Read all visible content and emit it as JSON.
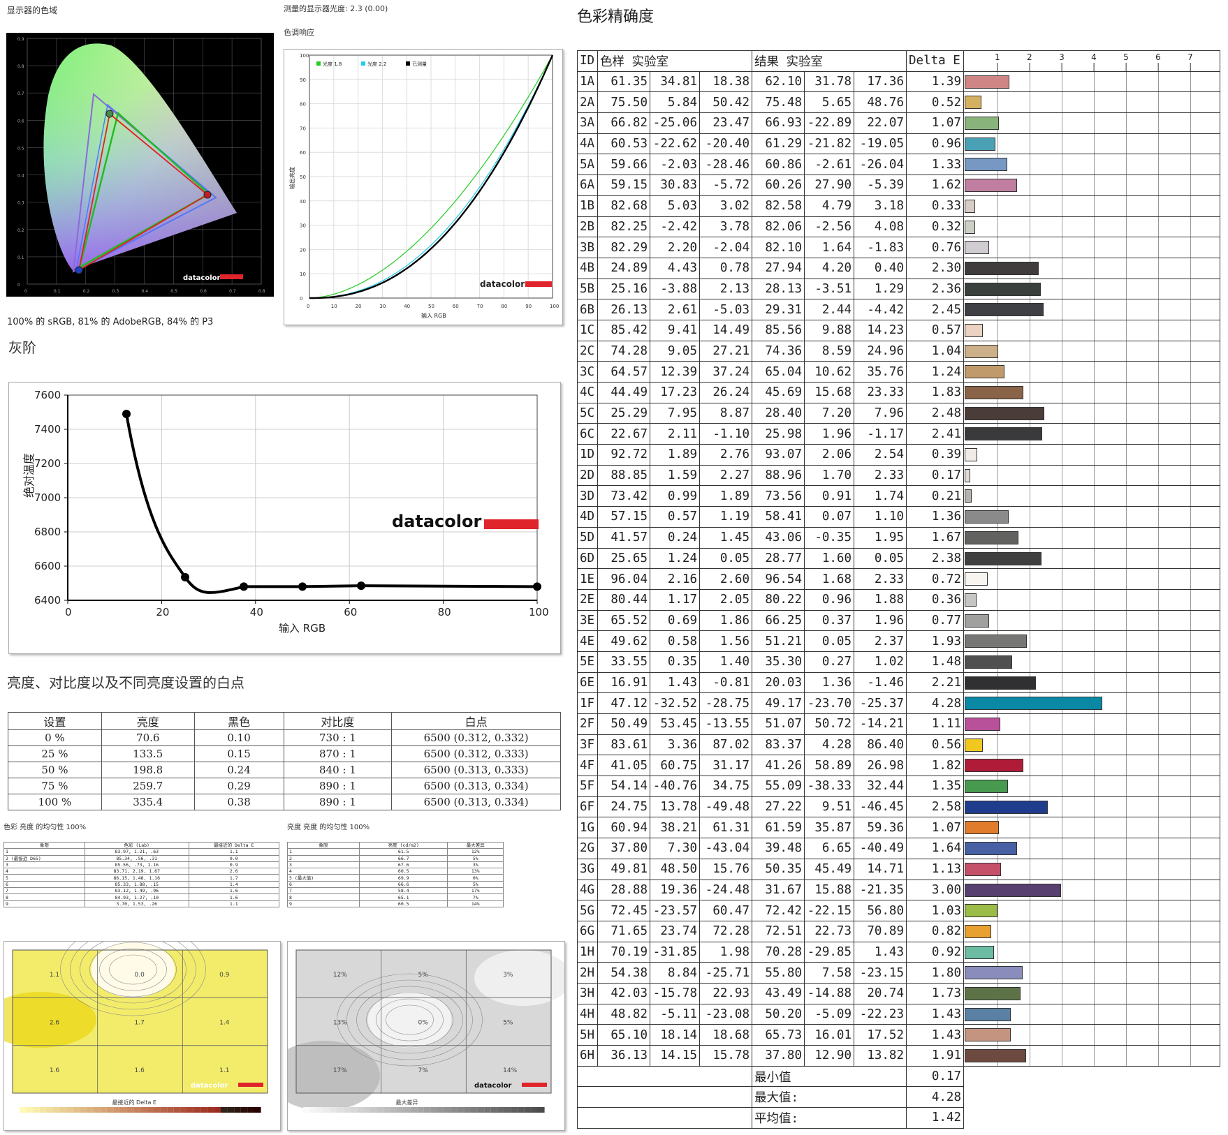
{
  "gamut": {
    "title": "显示器的色域",
    "summary": "100% 的 sRGB, 81% 的 AdobeRGB, 84% 的 P3",
    "logo": "datacolor",
    "x_ticks": [
      "0",
      "0.1",
      "0.2",
      "0.3",
      "0.4",
      "0.5",
      "0.6",
      "0.7",
      "0.8"
    ],
    "y_ticks": [
      "0.9",
      "0.8",
      "0.7",
      "0.6",
      "0.5",
      "0.4",
      "0.3",
      "0.2",
      "0.1",
      "0"
    ]
  },
  "tone": {
    "gamma_text": "测量的显示器光度: 2.3 (0.00)",
    "title": "色调响应",
    "legend": [
      "光度 1.8",
      "光度 2.2",
      "已测量"
    ],
    "legend_colors": [
      "#22cc22",
      "#22ccee",
      "#000000"
    ],
    "ylabel": "输出亮度",
    "xlabel": "输入 RGB",
    "logo": "datacolor",
    "ticks": [
      "0",
      "10",
      "20",
      "30",
      "40",
      "50",
      "60",
      "70",
      "80",
      "90",
      "100"
    ]
  },
  "grayscale": {
    "title": "灰阶",
    "ylabel": "绝对温度",
    "xlabel": "输入 RGB",
    "logo": "datacolor",
    "x_ticks": [
      "0",
      "20",
      "40",
      "60",
      "80",
      "100"
    ],
    "y_ticks": [
      "7600",
      "7400",
      "7200",
      "7000",
      "6800",
      "6600",
      "6400"
    ]
  },
  "chart_data": [
    {
      "type": "line",
      "title": "灰阶",
      "xlabel": "输入 RGB",
      "ylabel": "绝对温度",
      "xlim": [
        0,
        100
      ],
      "ylim": [
        6400,
        7600
      ],
      "x": [
        12.5,
        25,
        37.5,
        50,
        62.5,
        100
      ],
      "series": [
        {
          "values": [
            7490,
            6535,
            6480,
            6480,
            6485,
            6480
          ]
        }
      ]
    },
    {
      "type": "line",
      "title": "色调响应",
      "xlabel": "输入 RGB",
      "ylabel": "输出亮度",
      "xlim": [
        0,
        100
      ],
      "ylim": [
        0,
        100
      ],
      "series": [
        {
          "name": "光度 1.8",
          "gamma": 1.8
        },
        {
          "name": "光度 2.2",
          "gamma": 2.2
        },
        {
          "name": "已测量",
          "gamma": 2.3
        }
      ]
    }
  ],
  "brightness": {
    "title": "亮度、对比度以及不同亮度设置的白点",
    "headers": [
      "设置",
      "亮度",
      "黑色",
      "对比度",
      "白点"
    ],
    "rows": [
      [
        "0 %",
        "70.6",
        "0.10",
        "730 : 1",
        "6500 (0.312, 0.332)"
      ],
      [
        "25 %",
        "133.5",
        "0.15",
        "870 : 1",
        "6500 (0.312, 0.333)"
      ],
      [
        "50 %",
        "198.8",
        "0.24",
        "840 : 1",
        "6500 (0.313, 0.333)"
      ],
      [
        "75 %",
        "259.7",
        "0.29",
        "890 : 1",
        "6500 (0.313, 0.334)"
      ],
      [
        "100 %",
        "335.4",
        "0.38",
        "890 : 1",
        "6500 (0.313, 0.334)"
      ]
    ]
  },
  "uniformity_color": {
    "title": "色彩 亮度 的均匀性 100%",
    "headers": [
      "象限",
      "色彩 (Lab)",
      "最接近的 Delta E"
    ],
    "rows": [
      [
        "1",
        "83.97, 1.21, .63",
        "1.1"
      ],
      [
        "2 (最接近 D65)",
        "85.34, .56, .31",
        "0.0"
      ],
      [
        "3",
        "85.56, .73, 1.16",
        "0.9"
      ],
      [
        "4",
        "83.71, 2.19, 1.67",
        "2.6"
      ],
      [
        "5",
        "86.15, 1.48, 1.16",
        "1.7"
      ],
      [
        "6",
        "85.33, 1.88, .15",
        "1.4"
      ],
      [
        "7",
        "83.12, 1.49, .96",
        "1.6"
      ],
      [
        "8",
        "84.93, 1.27, .10",
        "1.6"
      ],
      [
        "9",
        "3.70, 1.53, .26",
        "1.1"
      ]
    ],
    "grid_values": [
      "1.1",
      "0.0",
      "0.9",
      "2.6",
      "1.7",
      "1.4",
      "1.6",
      "1.6",
      "1.1"
    ],
    "scale_title": "最接近的 Delta E",
    "logo": "datacolor"
  },
  "uniformity_lum": {
    "title": "亮度 亮度 的均匀性 100%",
    "headers": [
      "象限",
      "亮度 (cd/m2)",
      "最大差异"
    ],
    "rows": [
      [
        "1",
        "61.5",
        "12%"
      ],
      [
        "2",
        "66.7",
        "5%"
      ],
      [
        "3",
        "67.6",
        "3%"
      ],
      [
        "4",
        "60.5",
        "13%"
      ],
      [
        "5 (最大值)",
        "69.9",
        "0%"
      ],
      [
        "6",
        "66.6",
        "5%"
      ],
      [
        "7",
        "58.4",
        "17%"
      ],
      [
        "8",
        "65.1",
        "7%"
      ],
      [
        "9",
        "60.5",
        "14%"
      ]
    ],
    "grid_values": [
      "12%",
      "5%",
      "3%",
      "13%",
      "0%",
      "5%",
      "17%",
      "7%",
      "14%"
    ],
    "scale_title": "最大差异",
    "logo": "datacolor"
  },
  "accuracy": {
    "title": "色彩精确度",
    "headers": {
      "id": "ID",
      "sample": "色样 实验室",
      "result": "结果 实验室",
      "de": "Delta E"
    },
    "axis_ticks": [
      "1",
      "2",
      "3",
      "4",
      "5",
      "6",
      "7"
    ],
    "rows": [
      {
        "id": "1A",
        "s": [
          "61.35",
          "34.81",
          "18.38"
        ],
        "r": [
          "62.10",
          "31.78",
          "17.36"
        ],
        "de": 1.39,
        "c": "#d08585"
      },
      {
        "id": "2A",
        "s": [
          "75.50",
          "5.84",
          "50.42"
        ],
        "r": [
          "75.48",
          "5.65",
          "48.76"
        ],
        "de": 0.52,
        "c": "#d4b060"
      },
      {
        "id": "3A",
        "s": [
          "66.82",
          "-25.06",
          "23.47"
        ],
        "r": [
          "66.93",
          "-22.89",
          "22.07"
        ],
        "de": 1.07,
        "c": "#88b47c"
      },
      {
        "id": "4A",
        "s": [
          "60.53",
          "-22.62",
          "-20.40"
        ],
        "r": [
          "61.29",
          "-21.82",
          "-19.05"
        ],
        "de": 0.96,
        "c": "#4aa0b4"
      },
      {
        "id": "5A",
        "s": [
          "59.66",
          "-2.03",
          "-28.46"
        ],
        "r": [
          "60.86",
          "-2.61",
          "-26.04"
        ],
        "de": 1.33,
        "c": "#7898c4"
      },
      {
        "id": "6A",
        "s": [
          "59.15",
          "30.83",
          "-5.72"
        ],
        "r": [
          "60.26",
          "27.90",
          "-5.39"
        ],
        "de": 1.62,
        "c": "#c07ea0"
      },
      {
        "id": "1B",
        "s": [
          "82.68",
          "5.03",
          "3.02"
        ],
        "r": [
          "82.58",
          "4.79",
          "3.18"
        ],
        "de": 0.33,
        "c": "#d8ccc6"
      },
      {
        "id": "2B",
        "s": [
          "82.25",
          "-2.42",
          "3.78"
        ],
        "r": [
          "82.06",
          "-2.56",
          "4.08"
        ],
        "de": 0.32,
        "c": "#cccfc4"
      },
      {
        "id": "3B",
        "s": [
          "82.29",
          "2.20",
          "-2.04"
        ],
        "r": [
          "82.10",
          "1.64",
          "-1.83"
        ],
        "de": 0.76,
        "c": "#d0ccd2"
      },
      {
        "id": "4B",
        "s": [
          "24.89",
          "4.43",
          "0.78"
        ],
        "r": [
          "27.94",
          "4.20",
          "0.40"
        ],
        "de": 2.3,
        "c": "#403c3e"
      },
      {
        "id": "5B",
        "s": [
          "25.16",
          "-3.88",
          "2.13"
        ],
        "r": [
          "28.13",
          "-3.51",
          "1.29"
        ],
        "de": 2.36,
        "c": "#3a403c"
      },
      {
        "id": "6B",
        "s": [
          "26.13",
          "2.61",
          "-5.03"
        ],
        "r": [
          "29.31",
          "2.44",
          "-4.42"
        ],
        "de": 2.45,
        "c": "#3e4046"
      },
      {
        "id": "1C",
        "s": [
          "85.42",
          "9.41",
          "14.49"
        ],
        "r": [
          "85.56",
          "9.88",
          "14.23"
        ],
        "de": 0.57,
        "c": "#ecd2c2"
      },
      {
        "id": "2C",
        "s": [
          "74.28",
          "9.05",
          "27.21"
        ],
        "r": [
          "74.36",
          "8.59",
          "24.96"
        ],
        "de": 1.04,
        "c": "#ccb08a"
      },
      {
        "id": "3C",
        "s": [
          "64.57",
          "12.39",
          "37.24"
        ],
        "r": [
          "65.04",
          "10.62",
          "35.76"
        ],
        "de": 1.24,
        "c": "#c09a6a"
      },
      {
        "id": "4C",
        "s": [
          "44.49",
          "17.23",
          "26.24"
        ],
        "r": [
          "45.69",
          "15.68",
          "23.33"
        ],
        "de": 1.83,
        "c": "#8a6448"
      },
      {
        "id": "5C",
        "s": [
          "25.29",
          "7.95",
          "8.87"
        ],
        "r": [
          "28.40",
          "7.20",
          "7.96"
        ],
        "de": 2.48,
        "c": "#4a3c38"
      },
      {
        "id": "6C",
        "s": [
          "22.67",
          "2.11",
          "-1.10"
        ],
        "r": [
          "25.98",
          "1.96",
          "-1.17"
        ],
        "de": 2.41,
        "c": "#3a3a3c"
      },
      {
        "id": "1D",
        "s": [
          "92.72",
          "1.89",
          "2.76"
        ],
        "r": [
          "93.07",
          "2.06",
          "2.54"
        ],
        "de": 0.39,
        "c": "#f0ebe6"
      },
      {
        "id": "2D",
        "s": [
          "88.85",
          "1.59",
          "2.27"
        ],
        "r": [
          "88.96",
          "1.70",
          "2.33"
        ],
        "de": 0.17,
        "c": "#e2dcd8"
      },
      {
        "id": "3D",
        "s": [
          "73.42",
          "0.99",
          "1.89"
        ],
        "r": [
          "73.56",
          "0.91",
          "1.74"
        ],
        "de": 0.21,
        "c": "#b6b2b0"
      },
      {
        "id": "4D",
        "s": [
          "57.15",
          "0.57",
          "1.19"
        ],
        "r": [
          "58.41",
          "0.07",
          "1.10"
        ],
        "de": 1.36,
        "c": "#8a8a8a"
      },
      {
        "id": "5D",
        "s": [
          "41.57",
          "0.24",
          "1.45"
        ],
        "r": [
          "43.06",
          "-0.35",
          "1.95"
        ],
        "de": 1.67,
        "c": "#626260"
      },
      {
        "id": "6D",
        "s": [
          "25.65",
          "1.24",
          "0.05"
        ],
        "r": [
          "28.77",
          "1.60",
          "0.05"
        ],
        "de": 2.38,
        "c": "#404040"
      },
      {
        "id": "1E",
        "s": [
          "96.04",
          "2.16",
          "2.60"
        ],
        "r": [
          "96.54",
          "1.68",
          "2.33"
        ],
        "de": 0.72,
        "c": "#f8f4f0"
      },
      {
        "id": "2E",
        "s": [
          "80.44",
          "1.17",
          "2.05"
        ],
        "r": [
          "80.22",
          "0.96",
          "1.88"
        ],
        "de": 0.36,
        "c": "#c8c6c4"
      },
      {
        "id": "3E",
        "s": [
          "65.52",
          "0.69",
          "1.86"
        ],
        "r": [
          "66.25",
          "0.37",
          "1.96"
        ],
        "de": 0.77,
        "c": "#a0a09e"
      },
      {
        "id": "4E",
        "s": [
          "49.62",
          "0.58",
          "1.56"
        ],
        "r": [
          "51.21",
          "0.05",
          "2.37"
        ],
        "de": 1.93,
        "c": "#767674"
      },
      {
        "id": "5E",
        "s": [
          "33.55",
          "0.35",
          "1.40"
        ],
        "r": [
          "35.30",
          "0.27",
          "1.02"
        ],
        "de": 1.48,
        "c": "#505050"
      },
      {
        "id": "6E",
        "s": [
          "16.91",
          "1.43",
          "-0.81"
        ],
        "r": [
          "20.03",
          "1.36",
          "-1.46"
        ],
        "de": 2.21,
        "c": "#303032"
      },
      {
        "id": "1F",
        "s": [
          "47.12",
          "-32.52",
          "-28.75"
        ],
        "r": [
          "49.17",
          "-23.70",
          "-25.37"
        ],
        "de": 4.28,
        "c": "#0a88a4"
      },
      {
        "id": "2F",
        "s": [
          "50.49",
          "53.45",
          "-13.55"
        ],
        "r": [
          "51.07",
          "50.72",
          "-14.21"
        ],
        "de": 1.11,
        "c": "#b8509a"
      },
      {
        "id": "3F",
        "s": [
          "83.61",
          "3.36",
          "87.02"
        ],
        "r": [
          "83.37",
          "4.28",
          "86.40"
        ],
        "de": 0.56,
        "c": "#f0c820"
      },
      {
        "id": "4F",
        "s": [
          "41.05",
          "60.75",
          "31.17"
        ],
        "r": [
          "41.26",
          "58.89",
          "26.98"
        ],
        "de": 1.82,
        "c": "#b01c38"
      },
      {
        "id": "5F",
        "s": [
          "54.14",
          "-40.76",
          "34.75"
        ],
        "r": [
          "55.09",
          "-38.33",
          "32.44"
        ],
        "de": 1.35,
        "c": "#489a50"
      },
      {
        "id": "6F",
        "s": [
          "24.75",
          "13.78",
          "-49.48"
        ],
        "r": [
          "27.22",
          "9.51",
          "-46.45"
        ],
        "de": 2.58,
        "c": "#203c8c"
      },
      {
        "id": "1G",
        "s": [
          "60.94",
          "38.21",
          "61.31"
        ],
        "r": [
          "61.59",
          "35.87",
          "59.36"
        ],
        "de": 1.07,
        "c": "#e07c2c"
      },
      {
        "id": "2G",
        "s": [
          "37.80",
          "7.30",
          "-43.04"
        ],
        "r": [
          "39.48",
          "6.65",
          "-40.49"
        ],
        "de": 1.64,
        "c": "#4860a4"
      },
      {
        "id": "3G",
        "s": [
          "49.81",
          "48.50",
          "15.76"
        ],
        "r": [
          "50.35",
          "45.49",
          "14.71"
        ],
        "de": 1.13,
        "c": "#c4506a"
      },
      {
        "id": "4G",
        "s": [
          "28.88",
          "19.36",
          "-24.48"
        ],
        "r": [
          "31.67",
          "15.88",
          "-21.35"
        ],
        "de": 3.0,
        "c": "#584070"
      },
      {
        "id": "5G",
        "s": [
          "72.45",
          "-23.57",
          "60.47"
        ],
        "r": [
          "72.42",
          "-22.15",
          "56.80"
        ],
        "de": 1.03,
        "c": "#9cbc48"
      },
      {
        "id": "6G",
        "s": [
          "71.65",
          "23.74",
          "72.28"
        ],
        "r": [
          "72.51",
          "22.73",
          "70.89"
        ],
        "de": 0.82,
        "c": "#e8a030"
      },
      {
        "id": "1H",
        "s": [
          "70.19",
          "-31.85",
          "1.98"
        ],
        "r": [
          "70.28",
          "-29.85",
          "1.43"
        ],
        "de": 0.92,
        "c": "#6cbca4"
      },
      {
        "id": "2H",
        "s": [
          "54.38",
          "8.84",
          "-25.71"
        ],
        "r": [
          "55.80",
          "7.58",
          "-23.15"
        ],
        "de": 1.8,
        "c": "#8a8cbc"
      },
      {
        "id": "3H",
        "s": [
          "42.03",
          "-15.78",
          "22.93"
        ],
        "r": [
          "43.49",
          "-14.88",
          "20.74"
        ],
        "de": 1.73,
        "c": "#5e7248"
      },
      {
        "id": "4H",
        "s": [
          "48.82",
          "-5.11",
          "-23.08"
        ],
        "r": [
          "50.20",
          "-5.09",
          "-22.23"
        ],
        "de": 1.43,
        "c": "#5a80a4"
      },
      {
        "id": "5H",
        "s": [
          "65.10",
          "18.14",
          "18.68"
        ],
        "r": [
          "65.73",
          "16.01",
          "17.52"
        ],
        "de": 1.43,
        "c": "#c49480"
      },
      {
        "id": "6H",
        "s": [
          "36.13",
          "14.15",
          "15.78"
        ],
        "r": [
          "37.80",
          "12.90",
          "13.82"
        ],
        "de": 1.91,
        "c": "#6c4a40"
      }
    ],
    "summary": [
      {
        "label": "最小值",
        "value": "0.17"
      },
      {
        "label": "最大值:",
        "value": "4.28"
      },
      {
        "label": "平均值:",
        "value": "1.42"
      }
    ]
  }
}
